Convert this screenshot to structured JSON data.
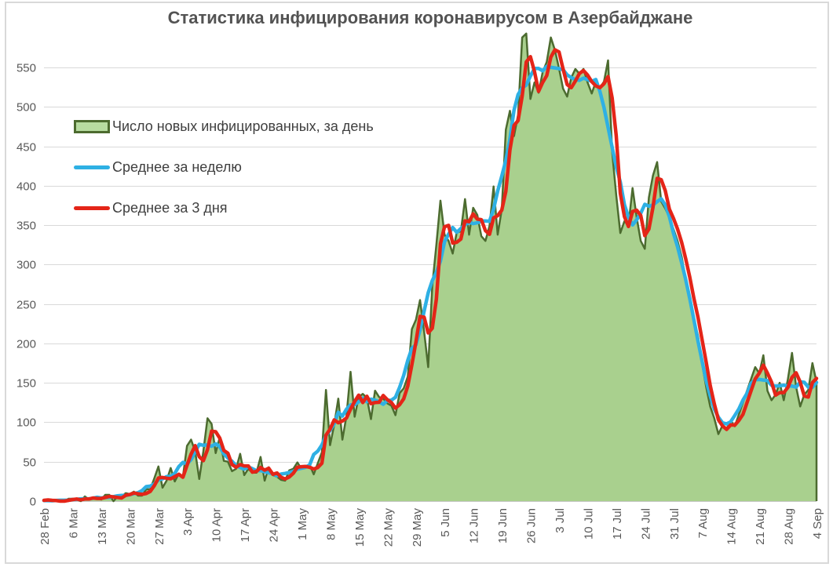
{
  "title": {
    "text": "Статистика инфицирования коронавирусом в Азербайджане",
    "color": "#535353"
  },
  "legend": {
    "position": "inside-top-left",
    "text_color": "#3f3f3f",
    "items": [
      {
        "label": "Число новых инфицированных, за день",
        "swatch": "area",
        "fill": "#b7dca0",
        "border": "#4c6b2f"
      },
      {
        "label": "Среднее за неделю",
        "swatch": "line",
        "color": "#2eb0e4"
      },
      {
        "label": "Среднее за 3 дня",
        "swatch": "line",
        "color": "#e42518"
      }
    ]
  },
  "chart_data": {
    "type": "area",
    "title": "Статистика инфицирования коронавирусом в Азербайджане",
    "xlabel": "",
    "ylabel": "",
    "start_date": "28 Feb",
    "end_date": "4 Sep",
    "x_tick_interval_days": 7,
    "x_tick_labels": [
      "28 Feb",
      "6 Mar",
      "13 Mar",
      "20 Mar",
      "27 Mar",
      "3 Apr",
      "10 Apr",
      "17 Apr",
      "24 Apr",
      "1 May",
      "8 May",
      "15 May",
      "22 May",
      "29 May",
      "5 Jun",
      "12 Jun",
      "19 Jun",
      "26 Jun",
      "3 Jul",
      "10 Jul",
      "17 Jul",
      "24 Jul",
      "31 Jul",
      "7 Aug",
      "14 Aug",
      "21 Aug",
      "28 Aug",
      "4 Sep"
    ],
    "y_ticks": [
      0,
      50,
      100,
      150,
      200,
      250,
      300,
      350,
      400,
      450,
      500,
      550
    ],
    "ylim": [
      0,
      592
    ],
    "grid": "horizontal",
    "gridline_color": "#d9d9d9",
    "axis_label_color": "#595959",
    "legend_position": "inside-top-left",
    "series": [
      {
        "name": "Число новых инфицированных, за день",
        "type": "area",
        "fill": "#a9d08e",
        "stroke": "#4c6b2f",
        "values": [
          1,
          2,
          0,
          0,
          0,
          0,
          3,
          3,
          2,
          0,
          6,
          2,
          4,
          4,
          2,
          8,
          8,
          0,
          6,
          6,
          10,
          9,
          12,
          7,
          7,
          15,
          15,
          29,
          44,
          17,
          26,
          42,
          25,
          35,
          31,
          70,
          78,
          63,
          28,
          63,
          105,
          98,
          61,
          81,
          51,
          50,
          38,
          41,
          60,
          33,
          41,
          36,
          36,
          56,
          26,
          43,
          33,
          31,
          27,
          26,
          39,
          41,
          49,
          41,
          42,
          46,
          34,
          48,
          62,
          141,
          71,
          97,
          130,
          78,
          108,
          164,
          107,
          132,
          136,
          131,
          104,
          140,
          132,
          130,
          124,
          121,
          109,
          137,
          143,
          158,
          218,
          230,
          255,
          215,
          170,
          273,
          325,
          381,
          338,
          330,
          314,
          341,
          342,
          383,
          338,
          372,
          363,
          336,
          330,
          349,
          399,
          338,
          370,
          471,
          495,
          463,
          490,
          588,
          593,
          510,
          531,
          518,
          544,
          557,
          588,
          572,
          549,
          523,
          513,
          537,
          548,
          542,
          548,
          531,
          517,
          532,
          524,
          532,
          559,
          443,
          388,
          340,
          355,
          350,
          397,
          360,
          330,
          320,
          385,
          413,
          430,
          380,
          371,
          360,
          345,
          330,
          310,
          282,
          260,
          230,
          210,
          175,
          145,
          120,
          105,
          85,
          96,
          92,
          102,
          95,
          110,
          125,
          140,
          155,
          170,
          162,
          185,
          140,
          128,
          135,
          150,
          128,
          155,
          188,
          145,
          120,
          135,
          141,
          175,
          151
        ]
      },
      {
        "name": "Среднее за неделю",
        "type": "line",
        "color": "#2eb0e4",
        "derived": "7-day centered moving average of the daily values"
      },
      {
        "name": "Среднее за 3 дня",
        "type": "line",
        "color": "#e42518",
        "derived": "3-day trailing moving average of the daily values"
      }
    ]
  }
}
